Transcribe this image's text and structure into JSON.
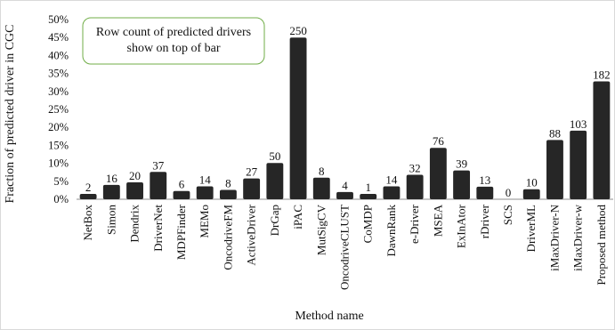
{
  "chart_data": {
    "type": "bar",
    "title": "",
    "xlabel": "Method name",
    "ylabel": "Fraction of predicted driver in CGC",
    "ylim": [
      0,
      50
    ],
    "yticks": [
      "0%",
      "5%",
      "10%",
      "15%",
      "20%",
      "25%",
      "30%",
      "35%",
      "40%",
      "45%",
      "50%"
    ],
    "categories": [
      "NetBox",
      "Simon",
      "Dendrix",
      "DriverNet",
      "MDPFinder",
      "MEMo",
      "OncodriveFM",
      "ActiveDriver",
      "DrGap",
      "iPAC",
      "MutSigCV",
      "OncodriveCLUST",
      "CoMDP",
      "DawnRank",
      "e-Driver",
      "MSEA",
      "ExInAtor",
      "rDriver",
      "SCS",
      "DriverML",
      "iMaxDriver-N",
      "iMaxDriver-w",
      "Proposed method"
    ],
    "values": [
      1.5,
      4,
      4.7,
      7.6,
      2.3,
      3.6,
      2.6,
      5.8,
      10.1,
      45,
      6,
      2,
      1.5,
      3.6,
      6.8,
      14.3,
      8,
      3.5,
      0,
      2.8,
      16.5,
      19.1,
      32.8
    ],
    "data_labels": [
      "2",
      "16",
      "20",
      "37",
      "6",
      "14",
      "8",
      "27",
      "50",
      "250",
      "8",
      "4",
      "1",
      "14",
      "32",
      "76",
      "39",
      "13",
      "0",
      "10",
      "88",
      "103",
      "182"
    ],
    "annotation": "Row count of predicted drivers show on top of bar",
    "bar_color": "#262626",
    "grid": false,
    "legend": "none"
  }
}
